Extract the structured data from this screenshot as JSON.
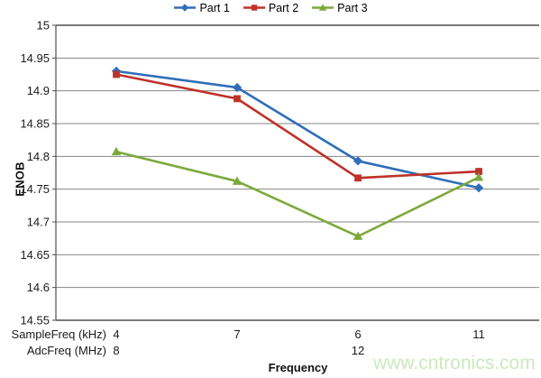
{
  "chart_data": {
    "type": "line",
    "title": "",
    "xlabel": "Frequency",
    "ylabel": "ENOB",
    "legend_position": "top",
    "grid": true,
    "y_axis": {
      "min": 14.55,
      "max": 15,
      "step": 0.05,
      "tick_labels": [
        "15",
        "14.95",
        "14.9",
        "14.85",
        "14.8",
        "14.75",
        "14.7",
        "14.65",
        "14.6",
        "14.55"
      ]
    },
    "x_axis": {
      "title": "Frequency",
      "rows": [
        {
          "label": "SampleFreq (kHz)",
          "values": [
            "4",
            "7",
            "6",
            "11"
          ]
        },
        {
          "label": "AdcFreq (MHz)",
          "values": [
            "8",
            "",
            "12",
            ""
          ]
        }
      ]
    },
    "series": [
      {
        "name": "Part 1",
        "color": "#306EB8",
        "marker": "diamond",
        "values": [
          14.93,
          14.905,
          14.793,
          14.752
        ]
      },
      {
        "name": "Part 2",
        "color": "#BE3229",
        "marker": "square",
        "values": [
          14.925,
          14.888,
          14.767,
          14.777
        ]
      },
      {
        "name": "Part 3",
        "color": "#7CA93C",
        "marker": "triangle",
        "values": [
          14.807,
          14.762,
          14.678,
          14.768
        ]
      }
    ],
    "watermark": {
      "text": "www.cntronics.com",
      "color": "#c9eabc"
    },
    "colors": {
      "gridline": "#868686",
      "axis_border": "#4f4f4f",
      "tick_text": "#1a1a1a"
    }
  }
}
